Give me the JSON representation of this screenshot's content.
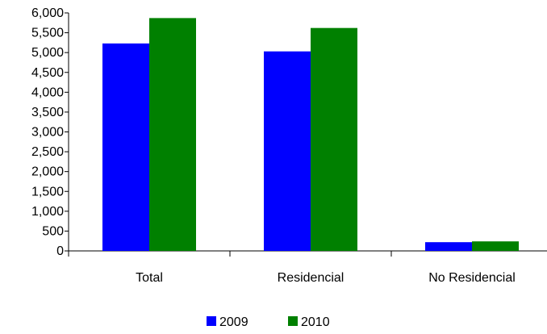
{
  "chart_data": {
    "type": "bar",
    "title": "",
    "xlabel": "",
    "ylabel": "",
    "categories": [
      "Total",
      "Residencial",
      "No Residencial"
    ],
    "series": [
      {
        "name": "2009",
        "values": [
          5230,
          5030,
          220
        ],
        "color": "#0000ff"
      },
      {
        "name": "2010",
        "values": [
          5870,
          5620,
          240
        ],
        "color": "#008000"
      }
    ],
    "ylim": [
      0,
      6000
    ],
    "yticks": [
      "0",
      "500",
      "1,000",
      "1,500",
      "2,000",
      "2,500",
      "3,000",
      "3,500",
      "4,000",
      "4,500",
      "5,000",
      "5,500",
      "6,000"
    ],
    "grid": false,
    "legend_position": "bottom"
  }
}
